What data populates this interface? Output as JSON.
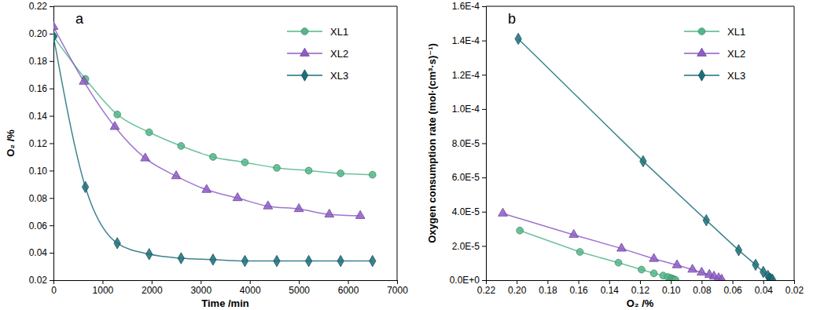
{
  "chart_data": [
    {
      "type": "line",
      "title": "a",
      "x_label": "Time /min",
      "y_label": "O₂ /%",
      "xlim": [
        0,
        7000
      ],
      "xticks": [
        0,
        1000,
        2000,
        3000,
        4000,
        5000,
        6000,
        7000
      ],
      "ylim": [
        0.02,
        0.22
      ],
      "yticks": [
        0.02,
        0.04,
        0.06,
        0.08,
        {
          "value": 0.1,
          "label": "0.10"
        },
        0.12,
        0.14,
        0.16,
        0.18,
        {
          "value": 0.2,
          "label": "0.20"
        },
        0.22
      ],
      "legend": "top-right",
      "series": [
        {
          "name": "XL1",
          "color": "#52b788",
          "marker": "circle",
          "line_style": "smooth",
          "x": [
            0,
            650,
            1300,
            1950,
            2600,
            3250,
            3900,
            4550,
            5200,
            5850,
            6500
          ],
          "values": [
            0.198,
            0.167,
            0.141,
            0.128,
            0.118,
            0.11,
            0.106,
            0.102,
            0.1,
            0.098,
            0.097
          ]
        },
        {
          "name": "XL2",
          "color": "#8e5cc8",
          "marker": "triangle",
          "line_style": "smooth",
          "x": [
            0,
            620,
            1250,
            1870,
            2500,
            3120,
            3750,
            4370,
            5000,
            5620,
            6250
          ],
          "values": [
            0.205,
            0.165,
            0.132,
            0.109,
            0.096,
            0.086,
            0.08,
            0.074,
            0.072,
            0.068,
            0.067
          ]
        },
        {
          "name": "XL3",
          "color": "#1b6f7a",
          "marker": "diamond",
          "line_style": "smooth",
          "x": [
            0,
            650,
            1300,
            1950,
            2600,
            3250,
            3900,
            4550,
            5200,
            5850,
            6500
          ],
          "values": [
            0.198,
            0.088,
            0.047,
            0.039,
            0.036,
            0.035,
            0.034,
            0.034,
            0.034,
            0.034,
            0.034
          ]
        }
      ]
    },
    {
      "type": "line",
      "title": "b",
      "x_label": "O₂ /%",
      "y_label": "Oxygen consumption rate (mol·(cm³·s)⁻¹)",
      "xlim": [
        0.22,
        0.02
      ],
      "xticks": [
        0.22,
        {
          "value": 0.2,
          "label": "0.20"
        },
        0.18,
        0.16,
        0.14,
        0.12,
        {
          "value": 0.1,
          "label": "0.10"
        },
        0.08,
        0.06,
        0.04,
        0.02
      ],
      "ylim": [
        0,
        0.00016
      ],
      "yticks": [
        {
          "value": 0,
          "label": "0.0E+0"
        },
        {
          "value": 2e-05,
          "label": "2.0E-5"
        },
        {
          "value": 4e-05,
          "label": "4.0E-5"
        },
        {
          "value": 6e-05,
          "label": "6.0E-5"
        },
        {
          "value": 8e-05,
          "label": "8.0E-5"
        },
        {
          "value": 0.0001,
          "label": "1.0E-4"
        },
        {
          "value": 0.00012,
          "label": "1.2E-4"
        },
        {
          "value": 0.00014,
          "label": "1.4E-4"
        },
        {
          "value": 0.00016,
          "label": "1.6E-4"
        }
      ],
      "legend": "top-right",
      "series": [
        {
          "name": "XL1",
          "color": "#52b788",
          "marker": "circle",
          "line_style": "straight",
          "x": [
            0.198,
            0.159,
            0.134,
            0.119,
            0.111,
            0.105,
            0.102,
            0.1,
            0.099,
            0.098,
            0.097
          ],
          "values": [
            2.9e-05,
            1.65e-05,
            1.02e-05,
            6.2e-06,
            4e-06,
            2.7e-06,
            1.9e-06,
            1.3e-06,
            9e-07,
            5e-07,
            2e-07
          ]
        },
        {
          "name": "XL2",
          "color": "#8e5cc8",
          "marker": "triangle",
          "line_style": "straight",
          "x": [
            0.209,
            0.163,
            0.132,
            0.111,
            0.096,
            0.086,
            0.08,
            0.075,
            0.072,
            0.069,
            0.067
          ],
          "values": [
            3.9e-05,
            2.65e-05,
            1.85e-05,
            1.25e-05,
            8.8e-06,
            6.2e-06,
            4.5e-06,
            3.2e-06,
            2.2e-06,
            1.2e-06,
            4e-07
          ]
        },
        {
          "name": "XL3",
          "color": "#1b6f7a",
          "marker": "diamond",
          "line_style": "straight",
          "x": [
            0.199,
            0.118,
            0.077,
            0.056,
            0.045,
            0.04,
            0.037,
            0.036,
            0.035,
            0.034
          ],
          "values": [
            0.000141,
            6.95e-05,
            3.5e-05,
            1.75e-05,
            9e-06,
            4.8e-06,
            2.5e-06,
            1.2e-06,
            6e-07,
            2e-07
          ]
        }
      ]
    }
  ]
}
